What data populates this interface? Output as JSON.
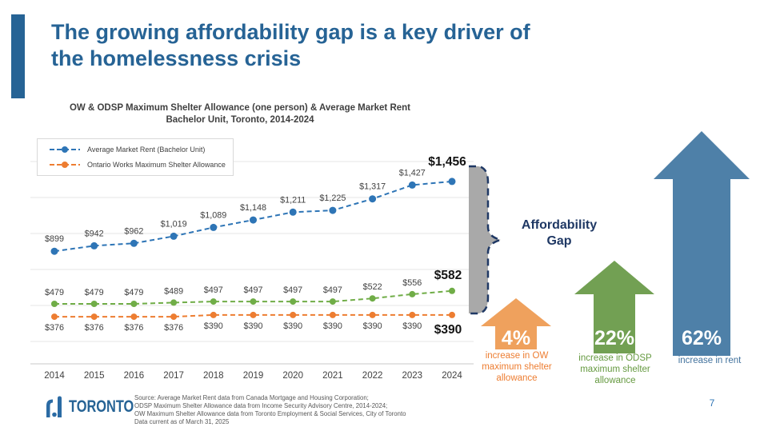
{
  "slide": {
    "title_line1": "The growing affordability gap is a key driver of",
    "title_line2": "the homelessness crisis",
    "accent_color": "#266395",
    "page_number": "7"
  },
  "chart": {
    "title_line1": "OW & ODSP Maximum Shelter Allowance (one person) & Average Market Rent",
    "title_line2": "Bachelor Unit, Toronto, 2014-2024",
    "legend": [
      {
        "label": "Average Market Rent (Bachelor Unit)",
        "color": "#2E75B6"
      },
      {
        "label": "Ontario Works Maximum Shelter Allowance",
        "color": "#ED7D31"
      }
    ]
  },
  "chart_data": {
    "type": "line",
    "title": "OW & ODSP Maximum Shelter Allowance (one person) & Average Market Rent, Bachelor Unit, Toronto, 2014-2024",
    "xlabel": "",
    "ylabel": "",
    "ylim": [
      0,
      1600
    ],
    "grid": "horizontal",
    "legend_position": "top-left",
    "line_style": "dashed-with-markers",
    "categories": [
      "2014",
      "2015",
      "2016",
      "2017",
      "2018",
      "2019",
      "2020",
      "2021",
      "2022",
      "2023",
      "2024"
    ],
    "series": [
      {
        "name": "Average Market Rent (Bachelor Unit)",
        "color": "#2E75B6",
        "values": [
          899,
          942,
          962,
          1019,
          1089,
          1148,
          1211,
          1225,
          1317,
          1427,
          1456
        ],
        "labels": [
          "$899",
          "$942",
          "$962",
          "$1,019",
          "$1,089",
          "$1,148",
          "$1,211",
          "$1,225",
          "$1,317",
          "$1,427",
          "$1,456"
        ]
      },
      {
        "name": "ODSP Maximum Shelter Allowance",
        "color": "#70AD47",
        "values": [
          479,
          479,
          479,
          489,
          497,
          497,
          497,
          497,
          522,
          556,
          582
        ],
        "labels": [
          "$479",
          "$479",
          "$479",
          "$489",
          "$497",
          "$497",
          "$497",
          "$497",
          "$522",
          "$556",
          "$582"
        ]
      },
      {
        "name": "Ontario Works Maximum Shelter Allowance",
        "color": "#ED7D31",
        "values": [
          376,
          376,
          376,
          376,
          390,
          390,
          390,
          390,
          390,
          390,
          390
        ],
        "labels": [
          "$376",
          "$376",
          "$376",
          "$376",
          "$390",
          "$390",
          "$390",
          "$390",
          "$390",
          "$390",
          "$390"
        ]
      }
    ]
  },
  "gap": {
    "label_line1": "Affordability",
    "label_line2": "Gap",
    "brace_fill": "#A9A9A9",
    "brace_stroke": "#1F3864"
  },
  "arrows": [
    {
      "pct": "4%",
      "caption": "increase in OW maximum shelter allowance",
      "fill": "#EFA15D",
      "text_color": "#ED7D31"
    },
    {
      "pct": "22%",
      "caption": "increase in ODSP maximum shelter allowance",
      "fill": "#72A053",
      "text_color": "#669A41"
    },
    {
      "pct": "62%",
      "caption": "increase in rent",
      "fill": "#4E80A8",
      "text_color": "#41719C"
    }
  ],
  "footer": {
    "logo_text": "TORONTO",
    "source_lines": [
      "Source: Average Market Rent data from Canada Mortgage and Housing Corporation;",
      "ODSP Maximum Shelter Allowance data from Income Security Advisory Centre, 2014-2024;",
      "OW Maximum Shelter Allowance data from Toronto Employment & Social Services, City of Toronto",
      "Data current as of March 31, 2025"
    ]
  }
}
